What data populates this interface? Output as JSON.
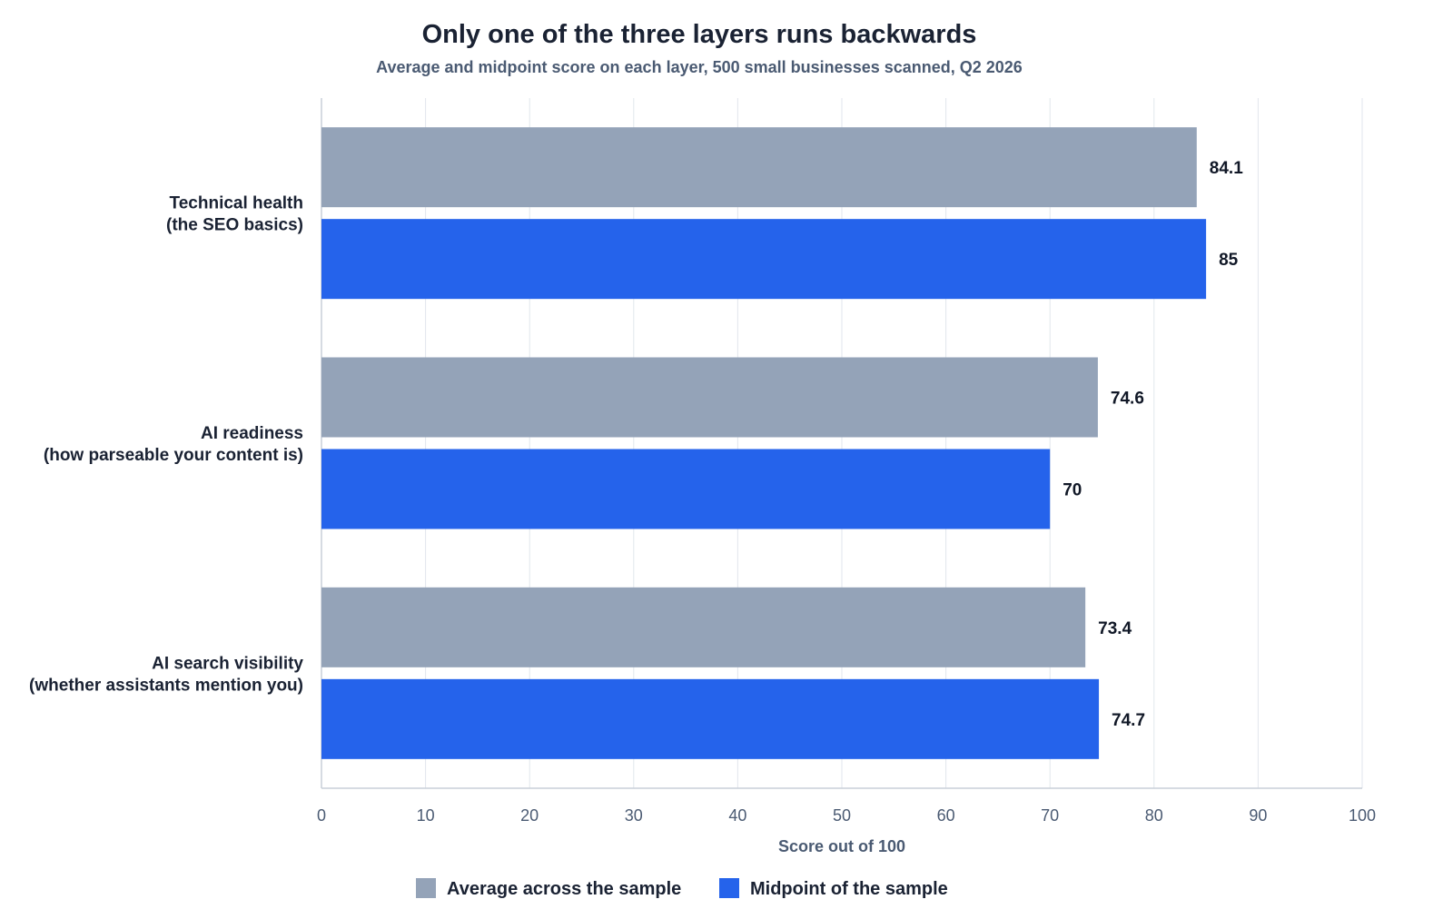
{
  "chart_data": {
    "type": "bar",
    "orientation": "horizontal",
    "title": "Only one of the three layers runs backwards",
    "subtitle": "Average and midpoint score on each layer, 500 small businesses scanned, Q2 2026",
    "xlabel": "Score out of 100",
    "ylabel": "",
    "xlim": [
      0,
      100
    ],
    "ticks": [
      "0",
      "10",
      "20",
      "30",
      "40",
      "50",
      "60",
      "70",
      "80",
      "90",
      "100"
    ],
    "grid": true,
    "legend_position": "bottom",
    "categories": [
      {
        "line1": "Technical health",
        "line2": "(the SEO basics)"
      },
      {
        "line1": "AI readiness",
        "line2": "(how parseable your content is)"
      },
      {
        "line1": "AI search visibility",
        "line2": "(whether assistants mention you)"
      }
    ],
    "series": [
      {
        "name": "Average across the sample",
        "color": "#94a3b8",
        "values": [
          84.1,
          74.6,
          73.4
        ],
        "labels": [
          "84.1",
          "74.6",
          "73.4"
        ]
      },
      {
        "name": "Midpoint of the sample",
        "color": "#2563eb",
        "values": [
          85,
          70,
          74.7
        ],
        "labels": [
          "85",
          "70",
          "74.7"
        ]
      }
    ]
  }
}
